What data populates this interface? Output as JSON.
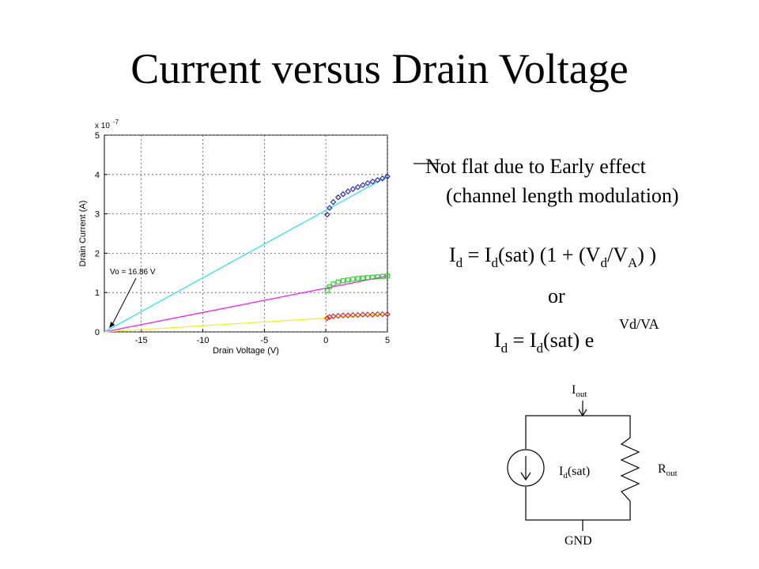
{
  "slide": {
    "title": "Current versus Drain Voltage",
    "annotation_line1": "Not flat due to Early effect",
    "annotation_line2": "(channel length modulation)",
    "eq1": {
      "i": "I",
      "d1": "d",
      "eq_isat": " = I",
      "d2": "d",
      "mid": "(sat) (1 +  (V",
      "d3": "d",
      "slash": "/V",
      "a": "A",
      "end": ") )"
    },
    "or": "or",
    "eq2": {
      "i": "I",
      "d1": "d",
      "eq_isat": " = I",
      "d2": "d",
      "end": "(sat) e",
      "exponent": "Vd/VA"
    }
  },
  "circuit": {
    "i_out": {
      "main": "I",
      "sub": "out"
    },
    "r_out": {
      "main": "R",
      "sub": "out"
    },
    "source": {
      "main": "I",
      "sub": "d",
      "rest": "(sat)"
    },
    "gnd": "GND"
  },
  "chart_data": {
    "type": "line",
    "xlabel": "Drain Voltage (V)",
    "ylabel": "Drain Current (A)",
    "exponent_label": "x 10",
    "exponent_power": "-7",
    "xlim": [
      -18,
      5
    ],
    "ylim": [
      0,
      5
    ],
    "xticks": [
      -15,
      -10,
      -5,
      0,
      5
    ],
    "yticks": [
      0,
      1,
      2,
      3,
      4,
      5
    ],
    "grid": true,
    "annotation": {
      "text": "Vo = 16.86 V",
      "target": [
        -17.6,
        0.1
      ]
    },
    "fit_lines": [
      {
        "color": "#33e0ee",
        "x": [
          -18,
          5
        ],
        "y": [
          0,
          3.95
        ]
      },
      {
        "color": "#ee22ee",
        "x": [
          -18,
          5
        ],
        "y": [
          0,
          1.42
        ]
      },
      {
        "color": "#eeee33",
        "x": [
          -18,
          5
        ],
        "y": [
          0,
          0.45
        ]
      }
    ],
    "series": [
      {
        "color": "#1a1acc",
        "marker": "diamond",
        "x": [
          0.1,
          0.3,
          0.6,
          1.0,
          1.4,
          1.8,
          2.2,
          2.6,
          3.0,
          3.4,
          3.8,
          4.2,
          4.6,
          5.0
        ],
        "y": [
          2.98,
          3.15,
          3.3,
          3.42,
          3.5,
          3.57,
          3.63,
          3.68,
          3.73,
          3.78,
          3.82,
          3.86,
          3.9,
          3.95
        ]
      },
      {
        "color": "#22cc22",
        "marker": "square",
        "x": [
          0.1,
          0.3,
          0.6,
          1.0,
          1.4,
          1.8,
          2.2,
          2.6,
          3.0,
          3.4,
          3.8,
          4.2,
          4.6,
          5.0
        ],
        "y": [
          1.05,
          1.15,
          1.22,
          1.27,
          1.3,
          1.32,
          1.34,
          1.36,
          1.37,
          1.38,
          1.39,
          1.4,
          1.41,
          1.42
        ]
      },
      {
        "color": "#dd2222",
        "marker": "diamond",
        "x": [
          0.1,
          0.3,
          0.6,
          1.0,
          1.4,
          1.8,
          2.2,
          2.6,
          3.0,
          3.4,
          3.8,
          4.2,
          4.6,
          5.0
        ],
        "y": [
          0.35,
          0.38,
          0.4,
          0.41,
          0.42,
          0.42,
          0.43,
          0.43,
          0.44,
          0.44,
          0.44,
          0.45,
          0.45,
          0.45
        ]
      }
    ]
  }
}
